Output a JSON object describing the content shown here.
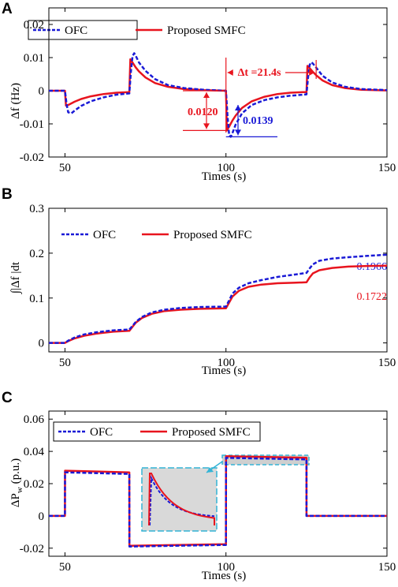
{
  "colors": {
    "ofc": "#1a1ad6",
    "smfc": "#e8141e",
    "inset": "#33b4d6"
  },
  "chart_data": [
    {
      "panel": "A",
      "type": "line",
      "xlabel": "Times (s)",
      "ylabel": "Δf (Hz)",
      "xlim": [
        45,
        150
      ],
      "ylim": [
        -0.02,
        0.025
      ],
      "xticks": [
        "50",
        "100",
        "150"
      ],
      "yticks": [
        "-0.02",
        "-0.01",
        "0",
        "0.01",
        "0.02"
      ],
      "legend": {
        "placement": "top-left",
        "entries": [
          "OFC",
          "Proposed SMFC"
        ]
      },
      "series": [
        {
          "name": "OFC",
          "style": "dashed",
          "x": [
            45,
            50,
            50.5,
            51,
            52,
            53,
            55,
            58,
            62,
            66,
            70,
            70.5,
            71,
            71.5,
            72,
            73,
            75,
            78,
            82,
            87,
            93,
            100,
            100.5,
            101,
            101.5,
            102,
            103,
            105,
            108,
            112,
            116,
            120,
            124,
            125,
            125.5,
            126,
            126.5,
            127,
            128,
            130,
            133,
            137,
            142,
            150
          ],
          "y": [
            0,
            0,
            -0.004,
            -0.0065,
            -0.0068,
            -0.006,
            -0.0046,
            -0.0032,
            -0.002,
            -0.0012,
            -0.0008,
            0.006,
            0.0105,
            0.0113,
            0.0105,
            0.0085,
            0.006,
            0.0035,
            0.0017,
            0.0008,
            0.0003,
            0,
            -0.008,
            -0.0135,
            -0.0139,
            -0.0128,
            -0.0102,
            -0.0068,
            -0.0043,
            -0.0028,
            -0.002,
            -0.0015,
            -0.0012,
            -0.0011,
            0.004,
            0.0078,
            0.0086,
            0.0082,
            0.007,
            0.0045,
            0.0025,
            0.0012,
            0.0005,
            0.0002
          ]
        },
        {
          "name": "Proposed SMFC",
          "style": "solid",
          "x": [
            45,
            50,
            50.3,
            51,
            52,
            53,
            55,
            58,
            62,
            66,
            70,
            70.3,
            71,
            72,
            73,
            75,
            78,
            82,
            87,
            93,
            100,
            100.3,
            101,
            102,
            103,
            105,
            108,
            112,
            116,
            120,
            124,
            125,
            125.3,
            126,
            127,
            128,
            130,
            133,
            137,
            142,
            150
          ],
          "y": [
            0,
            0,
            -0.0045,
            -0.0043,
            -0.0038,
            -0.0033,
            -0.0025,
            -0.0017,
            -0.001,
            -0.0006,
            -0.0004,
            0.0095,
            0.0085,
            0.007,
            0.0058,
            0.004,
            0.0023,
            0.0012,
            0.0005,
            0.0002,
            0,
            -0.012,
            -0.0108,
            -0.009,
            -0.0075,
            -0.0052,
            -0.0032,
            -0.0018,
            -0.001,
            -0.0006,
            -0.0004,
            -0.0004,
            0.0075,
            0.0068,
            0.0057,
            0.0047,
            0.0031,
            0.0017,
            0.0008,
            0.0003,
            0.0001
          ]
        }
      ],
      "annotations": {
        "delta_t": "Δt =21.4s",
        "red_value": "0.0120",
        "blue_value": "0.0139"
      }
    },
    {
      "panel": "B",
      "type": "line",
      "xlabel": "Times (s)",
      "ylabel": "∫|Δf |dt",
      "xlim": [
        45,
        150
      ],
      "ylim": [
        -0.02,
        0.3
      ],
      "xticks": [
        "50",
        "100",
        "150"
      ],
      "yticks": [
        "0",
        "0.1",
        "0.2",
        "0.3"
      ],
      "legend": {
        "placement": "top-left",
        "entries": [
          "OFC",
          "Proposed SMFC"
        ]
      },
      "series": [
        {
          "name": "OFC",
          "style": "dashed",
          "x": [
            45,
            50,
            51,
            53,
            56,
            60,
            65,
            70,
            71,
            72,
            74,
            77,
            81,
            86,
            92,
            100,
            101,
            102,
            104,
            107,
            111,
            116,
            121,
            125,
            126,
            127,
            129,
            133,
            138,
            144,
            150
          ],
          "y": [
            0,
            0,
            0.005,
            0.012,
            0.019,
            0.024,
            0.028,
            0.03,
            0.038,
            0.047,
            0.058,
            0.068,
            0.074,
            0.078,
            0.08,
            0.081,
            0.095,
            0.11,
            0.123,
            0.133,
            0.14,
            0.147,
            0.152,
            0.156,
            0.166,
            0.175,
            0.183,
            0.188,
            0.191,
            0.194,
            0.1966
          ]
        },
        {
          "name": "Proposed SMFC",
          "style": "solid",
          "x": [
            45,
            50,
            51,
            53,
            56,
            60,
            65,
            70,
            71,
            72,
            74,
            77,
            81,
            86,
            92,
            100,
            101,
            102,
            104,
            107,
            111,
            116,
            121,
            125,
            126,
            127,
            129,
            133,
            138,
            144,
            150
          ],
          "y": [
            0,
            0,
            0.004,
            0.01,
            0.016,
            0.021,
            0.025,
            0.027,
            0.036,
            0.045,
            0.056,
            0.065,
            0.071,
            0.074,
            0.076,
            0.077,
            0.09,
            0.103,
            0.116,
            0.125,
            0.13,
            0.133,
            0.134,
            0.135,
            0.146,
            0.155,
            0.162,
            0.167,
            0.17,
            0.1715,
            0.1722
          ]
        }
      ],
      "annotations": {
        "blue_end": "0.1966",
        "red_end": "0.1722"
      }
    },
    {
      "panel": "C",
      "type": "line",
      "xlabel": "Times (s)",
      "ylabel": "ΔPw (p.u.)",
      "ylabel_main": "ΔP",
      "ylabel_sub": "w",
      "ylabel_unit": " (p.u.)",
      "xlim": [
        45,
        150
      ],
      "ylim": [
        -0.025,
        0.065
      ],
      "xticks": [
        "50",
        "100",
        "150"
      ],
      "yticks": [
        "-0.02",
        "0",
        "0.02",
        "0.04",
        "0.06"
      ],
      "legend": {
        "placement": "top-left",
        "entries": [
          "OFC",
          "Proposed SMFC"
        ]
      },
      "series": [
        {
          "name": "OFC",
          "style": "dashed",
          "x": [
            45,
            50,
            50.01,
            70,
            70.01,
            100,
            100.01,
            125,
            125.01,
            150
          ],
          "y": [
            0,
            0,
            0.027,
            0.026,
            -0.019,
            -0.018,
            0.036,
            0.035,
            0,
            0
          ]
        },
        {
          "name": "Proposed SMFC",
          "style": "solid",
          "x": [
            45,
            50,
            50.01,
            70,
            70.01,
            100,
            100.01,
            125,
            125.01,
            150
          ],
          "y": [
            0,
            0,
            0.028,
            0.027,
            -0.0185,
            -0.0175,
            0.037,
            0.036,
            0,
            0
          ]
        }
      ]
    }
  ]
}
